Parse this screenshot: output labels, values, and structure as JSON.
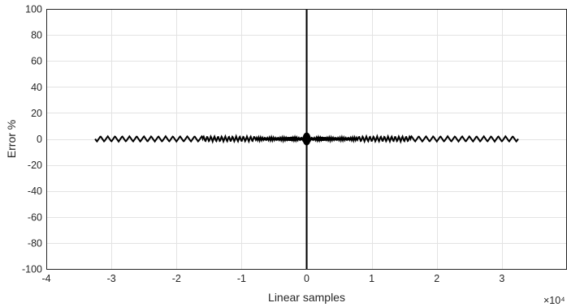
{
  "chart_data": {
    "type": "line",
    "title": "",
    "xlabel": "Linear samples",
    "ylabel": "Error %",
    "x_exponent_label": "×10⁴",
    "xlim": [
      -4,
      4
    ],
    "ylim": [
      -100,
      100
    ],
    "x_tick_labels": [
      "-4",
      "-3",
      "-2",
      "-1",
      "0",
      "1",
      "2",
      "3"
    ],
    "y_tick_labels": [
      "100",
      "80",
      "60",
      "40",
      "20",
      "0",
      "-20",
      "-40",
      "-60",
      "-80",
      "-100"
    ],
    "grid": true,
    "series": [
      {
        "color": "#000000",
        "x_range": [
          -3.25,
          3.25
        ],
        "y_range_approx": [
          -2,
          2
        ],
        "spike_at_zero": [
          -100,
          100
        ]
      }
    ]
  }
}
